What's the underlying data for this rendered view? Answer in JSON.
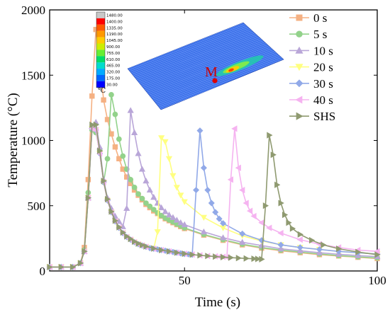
{
  "chart_data": {
    "type": "line",
    "xlabel": "Time (s)",
    "ylabel": "Temperature (°C)",
    "xlim": [
      15,
      100
    ],
    "ylim": [
      0,
      2000
    ],
    "xticks": [
      50,
      100
    ],
    "yticks": [
      0,
      500,
      1000,
      1500,
      2000
    ],
    "legend_position": "top-right",
    "series": [
      {
        "name": "0 s",
        "color": "#f5b183",
        "marker": "square",
        "x": [
          15,
          18,
          21,
          23,
          24,
          25,
          26,
          27,
          28,
          29,
          30,
          31,
          32,
          33,
          34,
          35,
          36,
          37,
          38,
          39,
          40,
          41,
          42,
          43,
          44,
          45,
          46,
          47,
          48,
          49,
          50,
          55,
          60,
          65,
          70,
          75,
          80,
          85,
          90,
          95,
          100
        ],
        "y": [
          30,
          30,
          30,
          60,
          180,
          700,
          1340,
          1850,
          1600,
          1310,
          1160,
          1050,
          950,
          860,
          780,
          720,
          670,
          620,
          580,
          545,
          510,
          485,
          460,
          440,
          420,
          400,
          385,
          370,
          355,
          340,
          325,
          275,
          235,
          200,
          175,
          155,
          140,
          125,
          115,
          105,
          95
        ]
      },
      {
        "name": "5 s",
        "color": "#93d28b",
        "marker": "circle",
        "x": [
          15,
          18,
          21,
          23,
          24,
          25,
          26,
          27,
          28,
          29,
          30,
          31,
          32,
          33,
          34,
          35,
          36,
          37,
          38,
          39,
          40,
          41,
          42,
          43,
          44,
          45,
          46,
          47,
          48,
          49,
          50,
          55,
          60,
          65,
          70,
          75,
          80,
          85,
          90,
          95,
          100
        ],
        "y": [
          30,
          30,
          30,
          60,
          160,
          600,
          1080,
          1060,
          920,
          680,
          860,
          1350,
          1200,
          1010,
          880,
          780,
          700,
          640,
          590,
          555,
          520,
          495,
          470,
          445,
          425,
          405,
          390,
          375,
          360,
          345,
          330,
          280,
          240,
          205,
          180,
          160,
          145,
          130,
          118,
          108,
          100
        ]
      },
      {
        "name": "10 s",
        "color": "#b9a6d8",
        "marker": "triangle-up",
        "x": [
          15,
          18,
          21,
          23,
          24,
          25,
          26,
          27,
          28,
          29,
          30,
          31,
          32,
          33,
          34,
          35,
          36,
          37,
          38,
          39,
          40,
          41,
          42,
          43,
          44,
          45,
          46,
          47,
          48,
          49,
          50,
          55,
          60,
          65,
          70,
          75,
          80,
          85,
          90,
          95,
          100
        ],
        "y": [
          30,
          30,
          30,
          60,
          150,
          560,
          1110,
          1140,
          950,
          700,
          560,
          480,
          420,
          380,
          340,
          480,
          1230,
          1060,
          900,
          780,
          690,
          620,
          565,
          520,
          485,
          455,
          430,
          410,
          390,
          370,
          355,
          300,
          255,
          220,
          195,
          170,
          155,
          140,
          128,
          118,
          110
        ]
      },
      {
        "name": "20 s",
        "color": "#ffff80",
        "marker": "triangle-down",
        "x": [
          15,
          18,
          21,
          23,
          24,
          25,
          26,
          27,
          28,
          29,
          30,
          31,
          32,
          33,
          34,
          35,
          36,
          37,
          38,
          39,
          40,
          41,
          42,
          43,
          44,
          45,
          46,
          47,
          48,
          49,
          50,
          55,
          60,
          65,
          70,
          75,
          80,
          85,
          90,
          95,
          100
        ],
        "y": [
          30,
          30,
          30,
          60,
          150,
          560,
          1090,
          1080,
          900,
          680,
          540,
          450,
          380,
          330,
          290,
          260,
          240,
          220,
          205,
          195,
          185,
          175,
          170,
          300,
          1020,
          990,
          860,
          730,
          640,
          580,
          530,
          410,
          330,
          270,
          230,
          200,
          180,
          165,
          150,
          140,
          130
        ]
      },
      {
        "name": "30 s",
        "color": "#91a9e8",
        "marker": "diamond",
        "x": [
          15,
          18,
          21,
          23,
          24,
          25,
          26,
          27,
          28,
          29,
          30,
          31,
          32,
          33,
          34,
          35,
          36,
          37,
          38,
          39,
          40,
          41,
          42,
          43,
          44,
          45,
          46,
          47,
          48,
          49,
          50,
          51,
          52,
          53,
          54,
          55,
          56,
          57,
          58,
          59,
          60,
          65,
          70,
          75,
          80,
          85,
          90,
          95,
          100
        ],
        "y": [
          30,
          30,
          30,
          60,
          150,
          560,
          1090,
          1080,
          900,
          680,
          540,
          450,
          380,
          330,
          290,
          260,
          240,
          220,
          205,
          195,
          185,
          175,
          170,
          165,
          160,
          155,
          150,
          145,
          140,
          135,
          130,
          128,
          125,
          620,
          1075,
          790,
          620,
          520,
          450,
          400,
          365,
          285,
          235,
          200,
          180,
          165,
          150,
          140,
          130
        ]
      },
      {
        "name": "40 s",
        "color": "#f5b3f0",
        "marker": "triangle-left",
        "x": [
          15,
          18,
          21,
          23,
          24,
          25,
          26,
          27,
          28,
          29,
          30,
          31,
          32,
          33,
          34,
          35,
          36,
          37,
          38,
          39,
          40,
          42,
          44,
          46,
          48,
          50,
          52,
          54,
          56,
          58,
          59,
          60,
          61,
          62,
          63,
          64,
          65,
          66,
          67,
          68,
          70,
          72,
          75,
          80,
          85,
          90,
          95,
          100
        ],
        "y": [
          30,
          30,
          30,
          60,
          150,
          560,
          1090,
          1080,
          900,
          680,
          540,
          450,
          380,
          330,
          290,
          260,
          240,
          220,
          205,
          195,
          185,
          170,
          160,
          150,
          140,
          132,
          126,
          120,
          115,
          112,
          110,
          108,
          105,
          700,
          1090,
          790,
          620,
          520,
          460,
          420,
          370,
          330,
          290,
          240,
          205,
          180,
          160,
          150
        ]
      },
      {
        "name": "SHS",
        "color": "#8f9a70",
        "marker": "triangle-right",
        "x": [
          15,
          18,
          21,
          23,
          24,
          25,
          26,
          27,
          28,
          29,
          30,
          31,
          32,
          33,
          34,
          35,
          36,
          37,
          38,
          39,
          40,
          42,
          44,
          46,
          48,
          50,
          52,
          54,
          56,
          58,
          60,
          62,
          64,
          66,
          68,
          69,
          70,
          71,
          72,
          73,
          74,
          75,
          76,
          77,
          78,
          80,
          83,
          86,
          90,
          95,
          100
        ],
        "y": [
          30,
          30,
          30,
          60,
          150,
          560,
          1120,
          1120,
          920,
          690,
          550,
          455,
          385,
          335,
          295,
          265,
          245,
          225,
          210,
          198,
          188,
          172,
          160,
          150,
          140,
          132,
          125,
          120,
          115,
          110,
          106,
          102,
          99,
          96,
          94,
          92,
          90,
          500,
          1040,
          890,
          660,
          520,
          430,
          370,
          325,
          280,
          235,
          200,
          170,
          145,
          125
        ]
      }
    ]
  },
  "inset": {
    "marker_label": "M",
    "colorbar_labels": [
      "1480.00",
      "1400.00",
      "1335.00",
      "1190.00",
      "1045.00",
      "900.00",
      "755.00",
      "610.00",
      "465.00",
      "320.00",
      "175.00",
      "30.00"
    ],
    "colorbar_colors": [
      "#c8c8c8",
      "#ff0000",
      "#ff5a00",
      "#ff9900",
      "#ffcc00",
      "#ccee00",
      "#66ee33",
      "#00dd66",
      "#00ddcc",
      "#00aaff",
      "#0066ff",
      "#0000ff"
    ],
    "unit": "℃"
  }
}
